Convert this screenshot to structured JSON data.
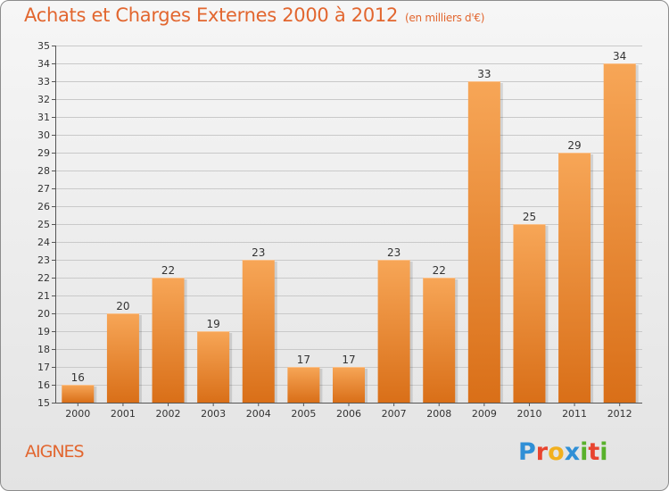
{
  "header": {
    "title": "Achats et Charges Externes 2000 à 2012",
    "unit": "(en milliers d'€)"
  },
  "footer": {
    "commune": "AIGNES",
    "logo_letters": [
      "P",
      "r",
      "o",
      "x",
      "i",
      "t",
      "i"
    ],
    "logo_colors": [
      "#2f8fd6",
      "#e8442f",
      "#f2b01e",
      "#2f8fd6",
      "#58b12b",
      "#e8442f",
      "#58b12b"
    ]
  },
  "colors": {
    "bar_top": "#f7a657",
    "bar_bottom": "#d96f18",
    "accent": "#e2662f",
    "grid": "#c9c9c9"
  },
  "chart_data": {
    "type": "bar",
    "title": "Achats et Charges Externes 2000 à 2012",
    "categories": [
      "2000",
      "2001",
      "2002",
      "2003",
      "2004",
      "2005",
      "2006",
      "2007",
      "2008",
      "2009",
      "2010",
      "2011",
      "2012"
    ],
    "values": [
      16,
      20,
      22,
      19,
      23,
      17,
      17,
      23,
      22,
      33,
      25,
      29,
      34
    ],
    "ylim": [
      15,
      35
    ],
    "yticks": [
      15,
      16,
      17,
      18,
      19,
      20,
      21,
      22,
      23,
      24,
      25,
      26,
      27,
      28,
      29,
      30,
      31,
      32,
      33,
      34,
      35
    ],
    "xlabel": "",
    "ylabel": "",
    "grid": true,
    "data_labels": true
  }
}
